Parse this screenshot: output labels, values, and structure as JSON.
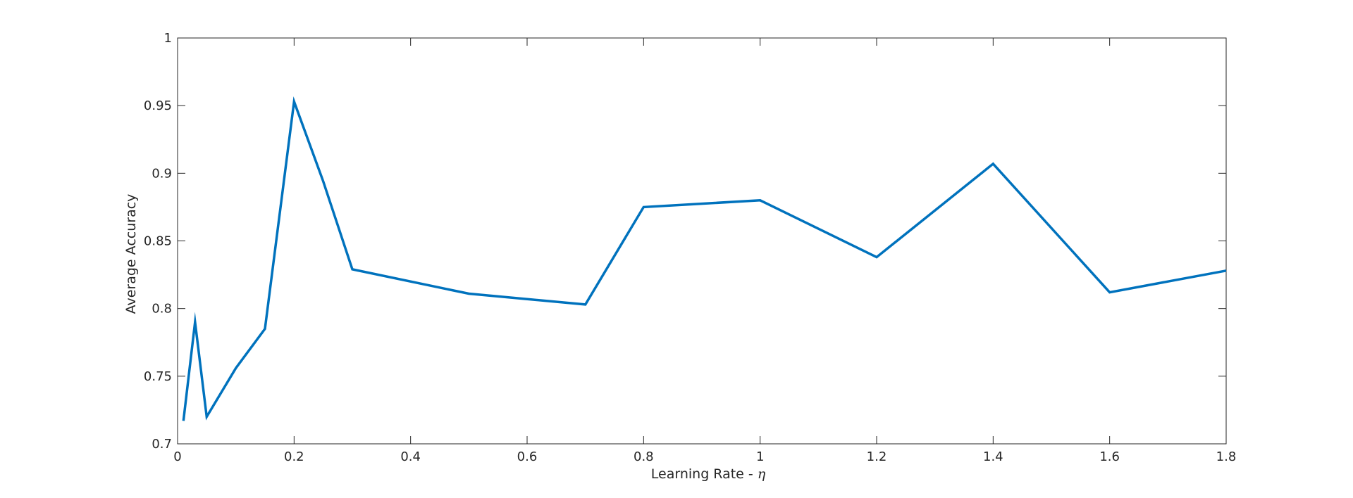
{
  "chart_data": {
    "type": "line",
    "title": "",
    "xlabel_text": "Learning Rate - ",
    "xlabel_symbol": "η",
    "ylabel": "Average Accuracy",
    "xlim": [
      0,
      1.8
    ],
    "ylim": [
      0.7,
      1.0
    ],
    "grid": false,
    "legend": "none",
    "line_color": "#0072BD",
    "xticks": [
      0,
      0.2,
      0.4,
      0.6,
      0.8,
      1,
      1.2,
      1.4,
      1.6,
      1.8
    ],
    "xtick_labels": [
      "0",
      "0.2",
      "0.4",
      "0.6",
      "0.8",
      "1",
      "1.2",
      "1.4",
      "1.6",
      "1.8"
    ],
    "yticks": [
      0.7,
      0.75,
      0.8,
      0.85,
      0.9,
      0.95,
      1.0
    ],
    "ytick_labels": [
      "0.7",
      "0.75",
      "0.8",
      "0.85",
      "0.9",
      "0.95",
      "1"
    ],
    "series": [
      {
        "x": [
          0.01,
          0.03,
          0.05,
          0.1,
          0.15,
          0.2,
          0.25,
          0.3,
          0.5,
          0.7,
          0.8,
          1.0,
          1.2,
          1.4,
          1.6,
          1.8
        ],
        "values": [
          0.717,
          0.79,
          0.72,
          0.756,
          0.785,
          0.953,
          0.894,
          0.829,
          0.811,
          0.803,
          0.875,
          0.88,
          0.838,
          0.907,
          0.812,
          0.828
        ]
      }
    ]
  }
}
